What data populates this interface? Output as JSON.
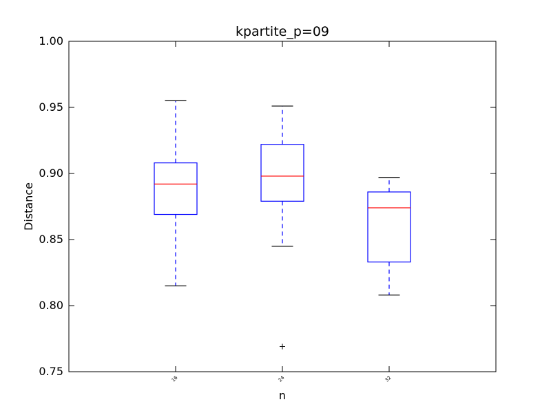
{
  "chart_data": {
    "type": "box",
    "title": "kpartite_p=09",
    "xlabel": "n",
    "ylabel": "Distance",
    "ylim": [
      0.75,
      1.0
    ],
    "yticks": [
      "0.75",
      "0.80",
      "0.85",
      "0.90",
      "0.95",
      "1.00"
    ],
    "categories": [
      "16",
      "24",
      "32"
    ],
    "grid": false,
    "colors": {
      "box": "#0000ff",
      "median": "#ff0000",
      "whisker": "#0000ff",
      "cap": "#000000",
      "flier": "#000000"
    },
    "boxes": [
      {
        "label": "16",
        "whislo": 0.815,
        "q1": 0.869,
        "med": 0.892,
        "q3": 0.908,
        "whishi": 0.955,
        "fliers": []
      },
      {
        "label": "24",
        "whislo": 0.845,
        "q1": 0.879,
        "med": 0.898,
        "q3": 0.922,
        "whishi": 0.951,
        "fliers": [
          0.769
        ]
      },
      {
        "label": "32",
        "whislo": 0.808,
        "q1": 0.833,
        "med": 0.874,
        "q3": 0.886,
        "whishi": 0.897,
        "fliers": []
      }
    ]
  }
}
